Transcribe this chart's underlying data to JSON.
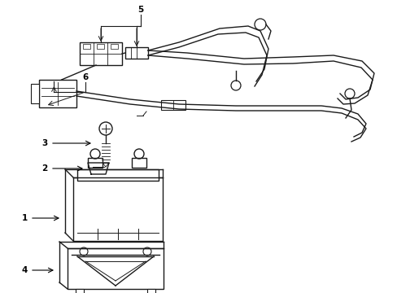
{
  "bg_color": "#ffffff",
  "line_color": "#1a1a1a",
  "fig_width": 4.89,
  "fig_height": 3.6,
  "dpi": 100,
  "label_fontsize": 7.5,
  "lw": 1.0
}
